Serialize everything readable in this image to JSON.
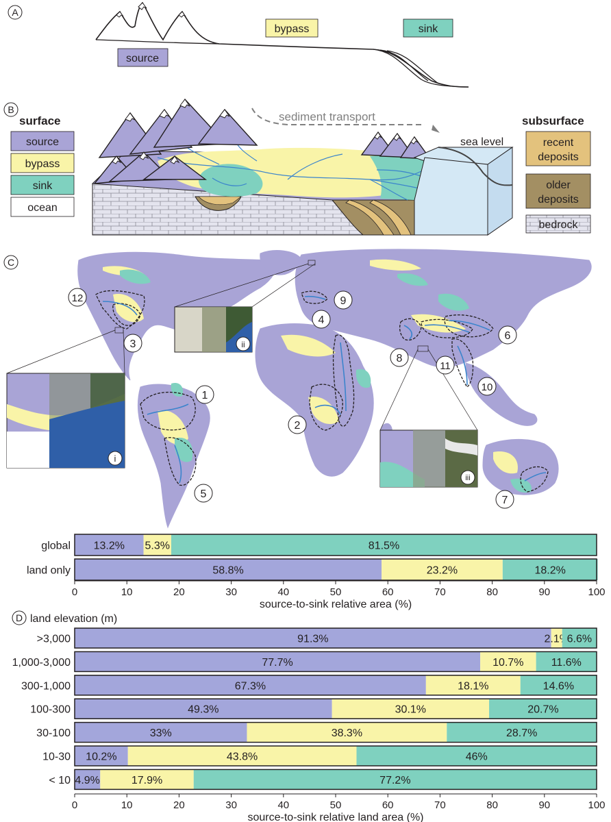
{
  "panel_letters": {
    "a": "A",
    "b": "B",
    "c": "C",
    "d": "D"
  },
  "colors": {
    "source": "#a9a4d6",
    "source_bar": "#a3a6db",
    "bypass": "#f9f4a8",
    "sink": "#7fd1bf",
    "ocean": "#ffffff",
    "sea_box": "#d4e8f5",
    "recent_deposits": "#e3c27d",
    "older_deposits": "#a38f63",
    "bedrock": "#e4e4ee",
    "river": "#3b84cc",
    "outline": "#231f20"
  },
  "panel_a": {
    "labels": {
      "source": "source",
      "bypass": "bypass",
      "sink": "sink"
    }
  },
  "panel_b": {
    "surface_title": "surface",
    "subsurface_title": "subsurface",
    "surface_legend": [
      "source",
      "bypass",
      "sink",
      "ocean"
    ],
    "subsurface_legend": [
      {
        "line1": "recent",
        "line2": "deposits"
      },
      {
        "line1": "older",
        "line2": "deposits"
      },
      {
        "line1": "bedrock",
        "line2": ""
      }
    ],
    "sediment_transport": "sediment transport",
    "sea_level": "sea level"
  },
  "panel_c": {
    "basin_numbers": [
      "1",
      "2",
      "3",
      "4",
      "5",
      "6",
      "7",
      "8",
      "9",
      "10",
      "11",
      "12"
    ],
    "insets": [
      "i",
      "ii",
      "iii"
    ]
  },
  "chart_data": [
    {
      "type": "bar",
      "orientation": "horizontal-stacked",
      "categories": [
        "global",
        "land only"
      ],
      "series": [
        {
          "name": "source",
          "values": [
            13.2,
            58.8
          ]
        },
        {
          "name": "bypass",
          "values": [
            5.3,
            23.2
          ]
        },
        {
          "name": "sink",
          "values": [
            81.5,
            18.2
          ]
        }
      ],
      "value_labels": [
        [
          "13.2%",
          "5.3%",
          "81.5%"
        ],
        [
          "58.8%",
          "23.2%",
          "18.2%"
        ]
      ],
      "xlabel": "source-to-sink relative area (%)",
      "xlim": [
        0,
        100
      ],
      "xticks": [
        "0",
        "10",
        "20",
        "30",
        "40",
        "50",
        "60",
        "70",
        "80",
        "90",
        "100"
      ]
    },
    {
      "type": "bar",
      "orientation": "horizontal-stacked",
      "title": "land elevation (m)",
      "categories": [
        ">3,000",
        "1,000-3,000",
        "300-1,000",
        "100-300",
        "30-100",
        "10-30",
        "< 10"
      ],
      "series": [
        {
          "name": "source",
          "values": [
            91.3,
            77.7,
            67.3,
            49.3,
            33,
            10.2,
            4.9
          ]
        },
        {
          "name": "bypass",
          "values": [
            2.1,
            10.7,
            18.1,
            30.1,
            38.3,
            43.8,
            17.9
          ]
        },
        {
          "name": "sink",
          "values": [
            6.6,
            11.6,
            14.6,
            20.7,
            28.7,
            46,
            77.2
          ]
        }
      ],
      "value_labels": [
        [
          "91.3%",
          "2.1%",
          "6.6%"
        ],
        [
          "77.7%",
          "10.7%",
          "11.6%"
        ],
        [
          "67.3%",
          "18.1%",
          "14.6%"
        ],
        [
          "49.3%",
          "30.1%",
          "20.7%"
        ],
        [
          "33%",
          "38.3%",
          "28.7%"
        ],
        [
          "10.2%",
          "43.8%",
          "46%"
        ],
        [
          "4.9%",
          "17.9%",
          "77.2%"
        ]
      ],
      "xlabel": "source-to-sink relative land area (%)",
      "xlim": [
        0,
        100
      ],
      "xticks": [
        "0",
        "10",
        "20",
        "30",
        "40",
        "50",
        "60",
        "70",
        "80",
        "90",
        "100"
      ]
    }
  ]
}
